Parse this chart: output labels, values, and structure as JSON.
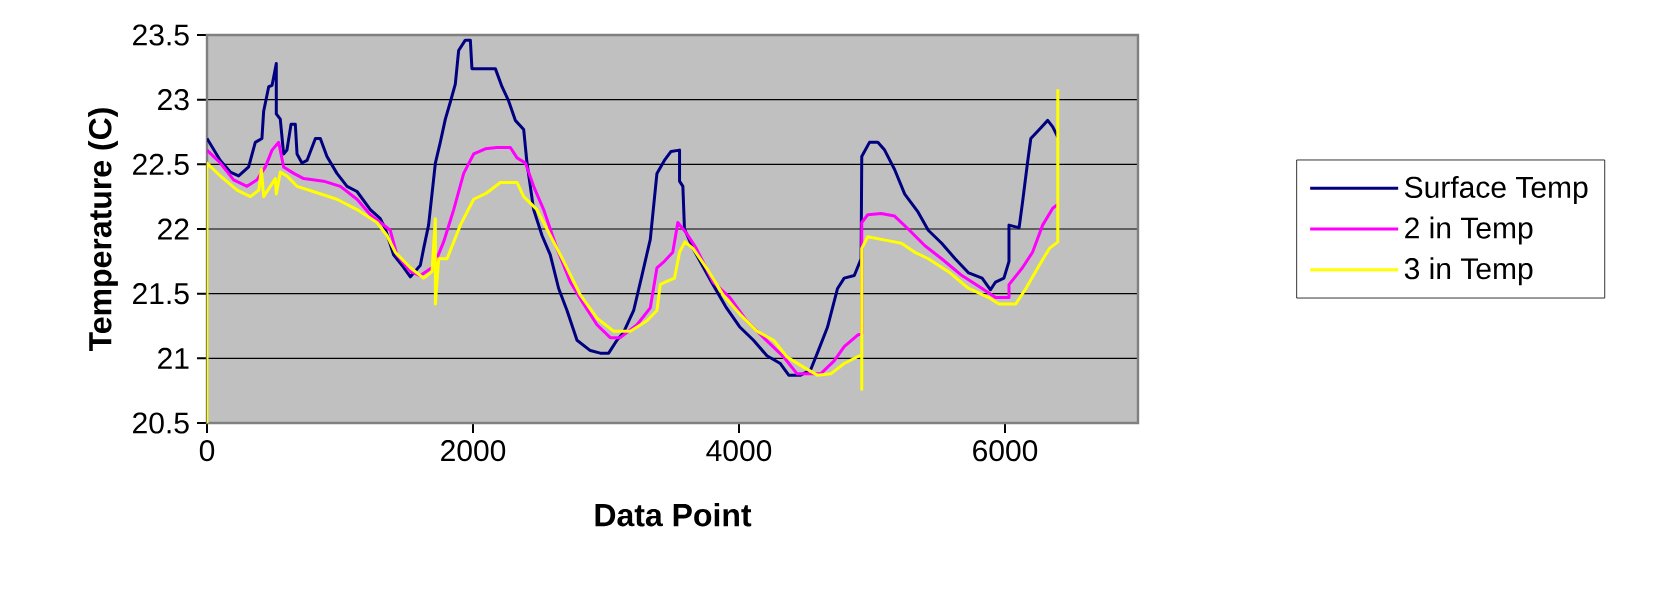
{
  "chart_data": {
    "type": "line",
    "xlabel": "Data Point",
    "ylabel": "Temperature (C)",
    "xlim": [
      0,
      7000
    ],
    "xticks": [
      0,
      2000,
      4000,
      6000
    ],
    "ylim": [
      20.5,
      23.5
    ],
    "yticks": [
      20.5,
      21,
      21.5,
      22,
      22.5,
      23,
      23.5
    ],
    "grid": "y",
    "legend": "right",
    "marker": "none",
    "line_style": "solid",
    "series": [
      {
        "name": "Surface Temp",
        "color": "#000080",
        "x": [
          0,
          100,
          175,
          238,
          313,
          363,
          413,
          426,
          464,
          489,
          521,
          521,
          551,
          576,
          601,
          632,
          664,
          677,
          714,
          752,
          815,
          852,
          902,
          977,
          1053,
          1128,
          1228,
          1303,
          1341,
          1403,
          1466,
          1529,
          1604,
          1629,
          1666,
          1717,
          1754,
          1792,
          1829,
          1867,
          1892,
          1942,
          1980,
          1992,
          2030,
          2168,
          2218,
          2268,
          2318,
          2381,
          2406,
          2456,
          2519,
          2581,
          2644,
          2707,
          2782,
          2882,
          2957,
          3020,
          3082,
          3132,
          3208,
          3270,
          3333,
          3383,
          3439,
          3489,
          3553,
          3553,
          3578,
          3590,
          3654,
          3793,
          3906,
          4008,
          4109,
          4210,
          4311,
          4374,
          4463,
          4538,
          4589,
          4665,
          4741,
          4791,
          4867,
          4918,
          4923,
          4981,
          5044,
          5095,
          5170,
          5246,
          5347,
          5423,
          5524,
          5625,
          5727,
          5828,
          5891,
          5929,
          5992,
          6030,
          6030,
          6106,
          6131,
          6169,
          6194,
          6258,
          6321,
          6359,
          6397
        ],
        "values": [
          22.7,
          22.53,
          22.44,
          22.41,
          22.48,
          22.67,
          22.7,
          22.91,
          23.1,
          23.11,
          23.28,
          22.89,
          22.85,
          22.58,
          22.61,
          22.81,
          22.81,
          22.58,
          22.51,
          22.53,
          22.7,
          22.7,
          22.56,
          22.43,
          22.33,
          22.29,
          22.15,
          22.08,
          22.0,
          21.8,
          21.72,
          21.63,
          21.72,
          21.85,
          22.03,
          22.51,
          22.67,
          22.85,
          22.98,
          23.12,
          23.38,
          23.46,
          23.46,
          23.24,
          23.24,
          23.24,
          23.1,
          22.99,
          22.84,
          22.77,
          22.51,
          22.15,
          21.95,
          21.8,
          21.54,
          21.37,
          21.14,
          21.06,
          21.04,
          21.04,
          21.14,
          21.2,
          21.37,
          21.64,
          21.92,
          22.43,
          22.53,
          22.6,
          22.61,
          22.37,
          22.33,
          22.0,
          21.85,
          21.59,
          21.39,
          21.24,
          21.14,
          21.02,
          20.96,
          20.87,
          20.87,
          20.91,
          21.04,
          21.24,
          21.54,
          21.62,
          21.64,
          21.77,
          22.56,
          22.67,
          22.67,
          22.61,
          22.46,
          22.27,
          22.13,
          21.99,
          21.89,
          21.77,
          21.66,
          21.62,
          21.53,
          21.59,
          21.62,
          21.75,
          22.03,
          22.01,
          22.2,
          22.51,
          22.7,
          22.77,
          22.84,
          22.79,
          22.71
        ]
      },
      {
        "name": "2 in Temp",
        "color": "#ff00ff",
        "x": [
          0,
          100,
          200,
          301,
          376,
          439,
          489,
          539,
          576,
          652,
          727,
          877,
          1003,
          1128,
          1228,
          1378,
          1428,
          1529,
          1604,
          1704,
          1779,
          1855,
          1930,
          2005,
          2093,
          2180,
          2281,
          2331,
          2394,
          2456,
          2531,
          2631,
          2732,
          2832,
          2932,
          3032,
          3107,
          3233,
          3333,
          3383,
          3439,
          3502,
          3540,
          3603,
          3679,
          3805,
          3932,
          4058,
          4185,
          4336,
          4437,
          4513,
          4614,
          4715,
          4791,
          4892,
          4923,
          4923,
          4968,
          5069,
          5170,
          5272,
          5398,
          5524,
          5676,
          5828,
          5929,
          6030,
          6030,
          6131,
          6207,
          6283,
          6359,
          6397
        ],
        "values": [
          22.61,
          22.51,
          22.38,
          22.33,
          22.38,
          22.48,
          22.61,
          22.67,
          22.48,
          22.43,
          22.39,
          22.37,
          22.33,
          22.23,
          22.11,
          21.99,
          21.8,
          21.67,
          21.64,
          21.71,
          21.9,
          22.15,
          22.43,
          22.58,
          22.62,
          22.63,
          22.63,
          22.55,
          22.51,
          22.33,
          22.15,
          21.85,
          21.59,
          21.42,
          21.26,
          21.16,
          21.16,
          21.26,
          21.39,
          21.7,
          21.75,
          21.82,
          22.05,
          21.97,
          21.85,
          21.59,
          21.47,
          21.29,
          21.16,
          21.01,
          20.88,
          20.88,
          20.88,
          20.98,
          21.09,
          21.18,
          21.19,
          22.05,
          22.11,
          22.12,
          22.1,
          22.0,
          21.87,
          21.77,
          21.64,
          21.54,
          21.47,
          21.47,
          21.57,
          21.7,
          21.82,
          22.03,
          22.16,
          22.19
        ]
      },
      {
        "name": "3 in Temp",
        "color": "#ffff00",
        "x": [
          0,
          0,
          100,
          226,
          326,
          389,
          409,
          426,
          476,
          514,
          521,
          551,
          601,
          677,
          827,
          977,
          1128,
          1278,
          1353,
          1416,
          1529,
          1629,
          1692,
          1717,
          1717,
          1742,
          1805,
          1905,
          2005,
          2105,
          2206,
          2331,
          2381,
          2481,
          2581,
          2682,
          2807,
          2932,
          3057,
          3183,
          3308,
          3383,
          3408,
          3445,
          3515,
          3553,
          3593,
          3654,
          3755,
          3881,
          4008,
          4134,
          4260,
          4361,
          4488,
          4589,
          4690,
          4791,
          4905,
          4923,
          4923,
          4923,
          4968,
          5120,
          5221,
          5322,
          5423,
          5575,
          5727,
          5878,
          5954,
          6081,
          6157,
          6258,
          6334,
          6397,
          6397
        ],
        "values": [
          20.5,
          22.51,
          22.41,
          22.3,
          22.25,
          22.3,
          22.46,
          22.25,
          22.33,
          22.39,
          22.27,
          22.44,
          22.41,
          22.33,
          22.28,
          22.23,
          22.15,
          22.05,
          21.95,
          21.82,
          21.7,
          21.62,
          21.67,
          22.08,
          21.42,
          21.77,
          21.77,
          22.03,
          22.23,
          22.28,
          22.36,
          22.36,
          22.25,
          22.15,
          21.95,
          21.75,
          21.49,
          21.31,
          21.21,
          21.21,
          21.29,
          21.37,
          21.57,
          21.59,
          21.62,
          21.82,
          21.9,
          21.85,
          21.7,
          21.49,
          21.34,
          21.21,
          21.14,
          21.01,
          20.93,
          20.87,
          20.88,
          20.96,
          21.02,
          21.02,
          20.76,
          21.85,
          21.94,
          21.91,
          21.89,
          21.82,
          21.77,
          21.67,
          21.54,
          21.47,
          21.42,
          21.42,
          21.54,
          21.72,
          21.85,
          21.9,
          23.08
        ]
      }
    ]
  }
}
